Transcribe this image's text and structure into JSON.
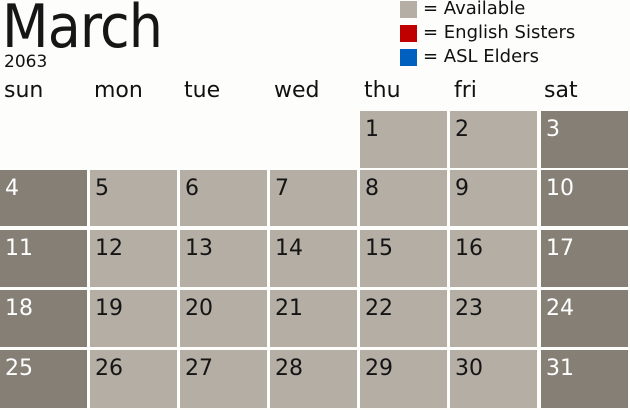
{
  "header": {
    "month": "March",
    "year": "2063"
  },
  "legend": [
    {
      "label": "= Available",
      "color": "#b4aea5"
    },
    {
      "label": "= English Sisters",
      "color": "#c00000"
    },
    {
      "label": "= ASL Elders",
      "color": "#0060c0"
    }
  ],
  "weekdays": [
    "sun",
    "mon",
    "tue",
    "wed",
    "thu",
    "fri",
    "sat"
  ],
  "weeks": [
    [
      null,
      null,
      null,
      null,
      "1",
      "2",
      "3"
    ],
    [
      "4",
      "5",
      "6",
      "7",
      "8",
      "9",
      "10"
    ],
    [
      "11",
      "12",
      "13",
      "14",
      "15",
      "16",
      "17"
    ],
    [
      "18",
      "19",
      "20",
      "21",
      "22",
      "23",
      "24"
    ],
    [
      "25",
      "26",
      "27",
      "28",
      "29",
      "30",
      "31"
    ]
  ],
  "colors": {
    "available": "#b4aea5",
    "weekend": "#857f76"
  }
}
